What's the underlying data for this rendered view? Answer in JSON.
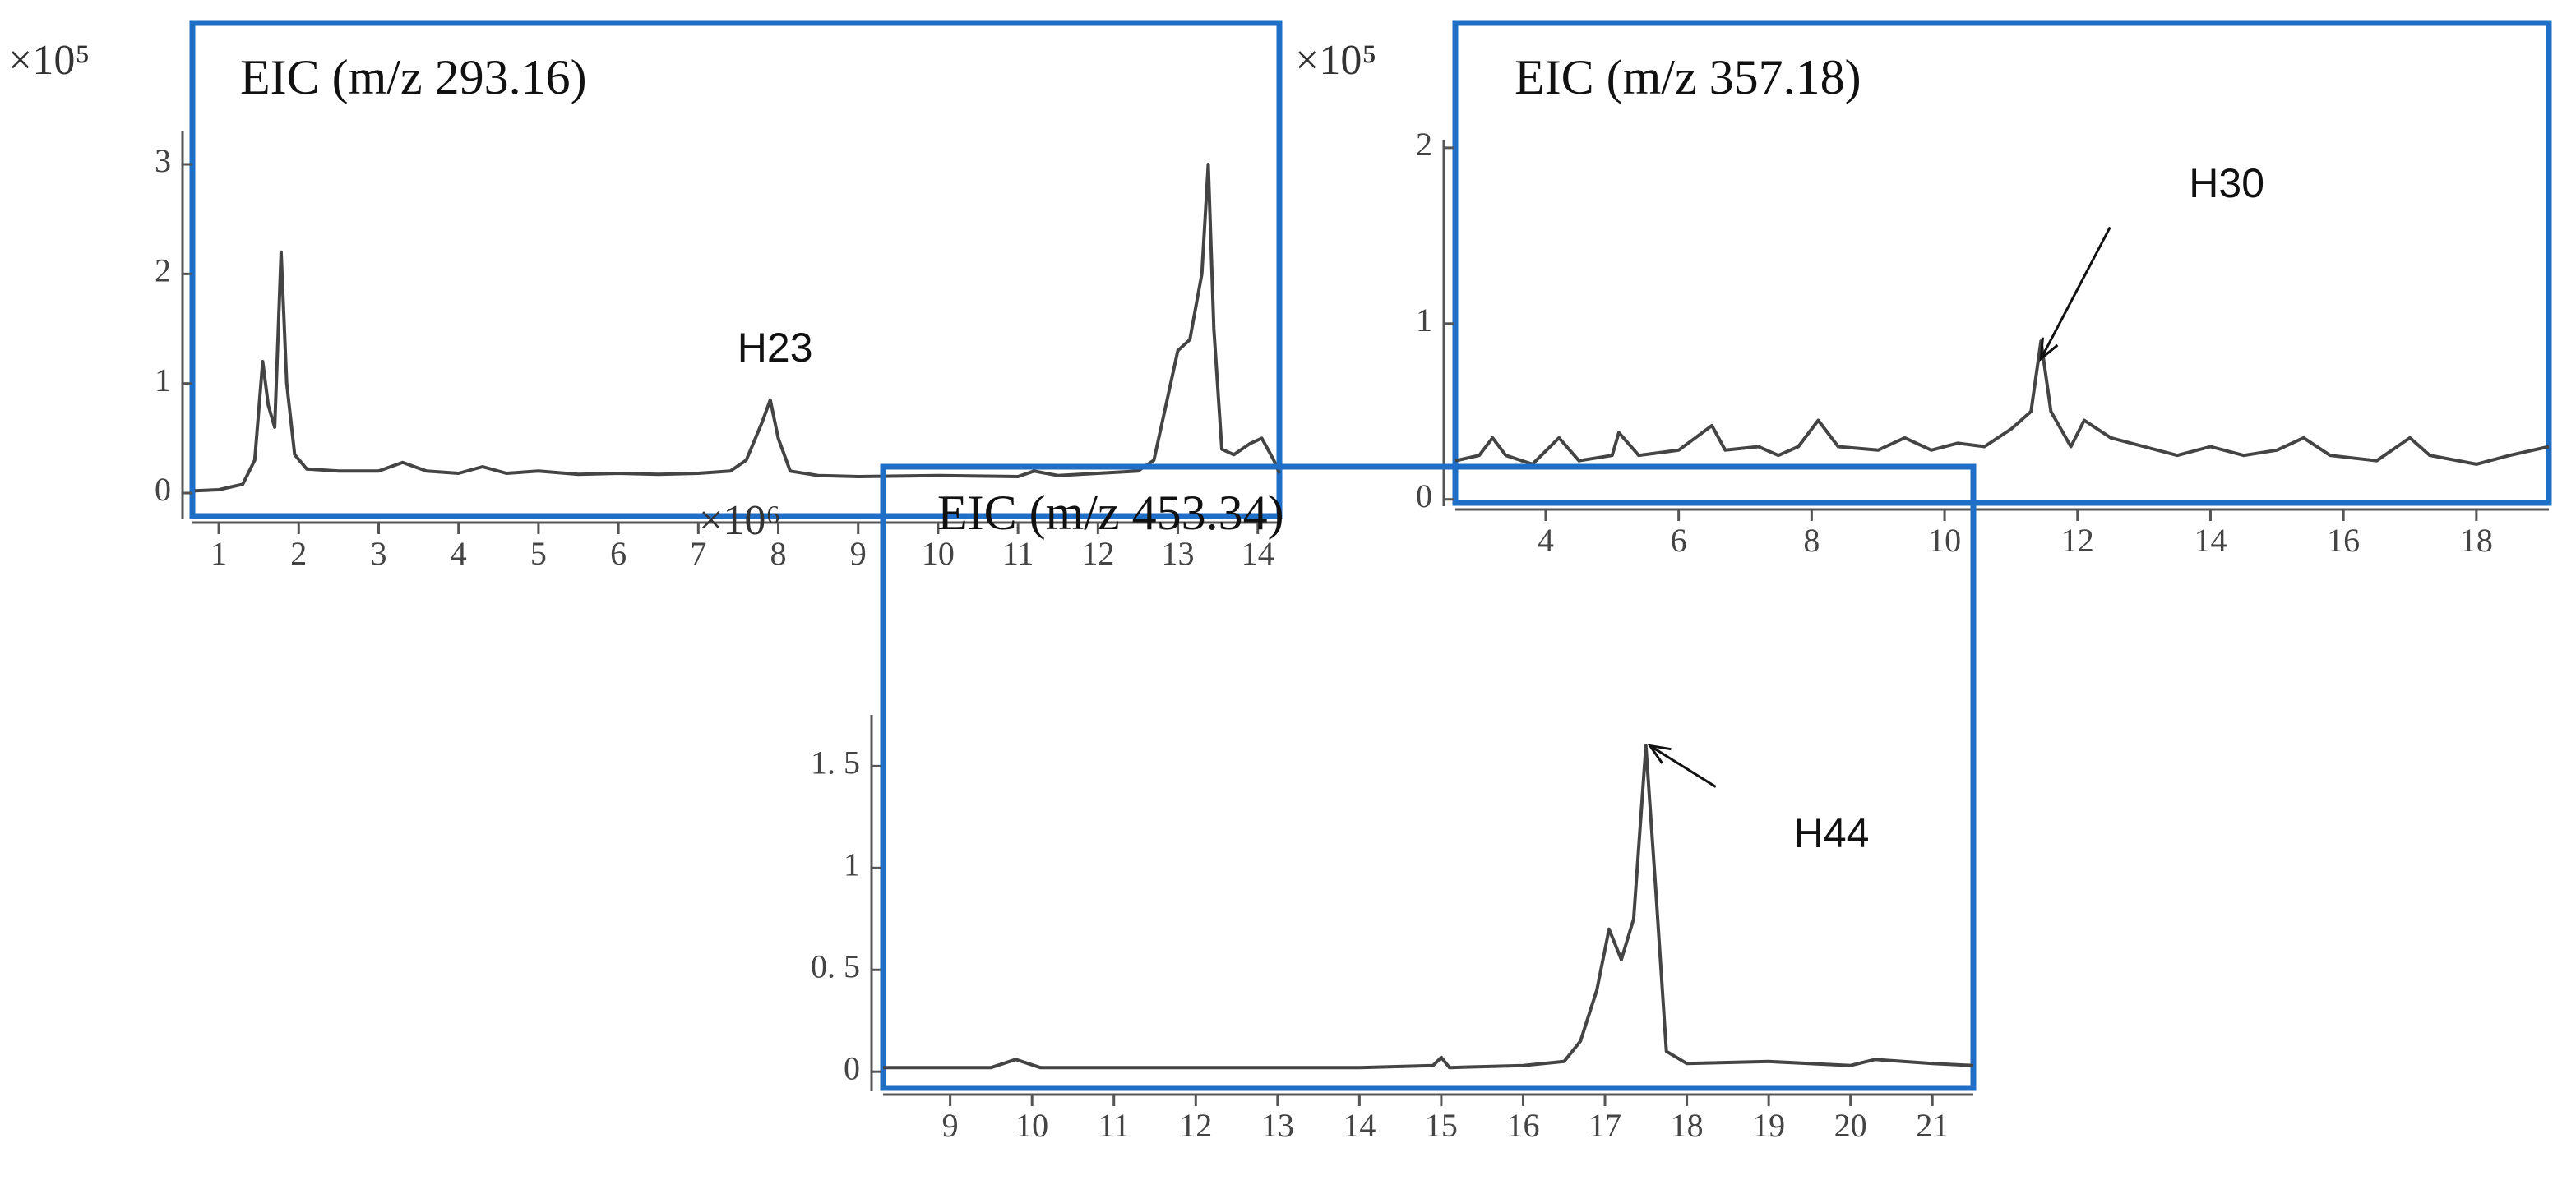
{
  "chart_data": [
    {
      "type": "line",
      "title": "EIC (m/z 293.16)",
      "scale_label": "×10⁵",
      "color": "#444444",
      "x": [
        0.7,
        1.0,
        1.3,
        1.45,
        1.55,
        1.62,
        1.7,
        1.78,
        1.85,
        1.95,
        2.1,
        2.5,
        3.0,
        3.3,
        3.6,
        4.0,
        4.3,
        4.6,
        5.0,
        5.5,
        6.0,
        6.5,
        7.0,
        7.4,
        7.6,
        7.8,
        7.9,
        8.0,
        8.15,
        8.5,
        9.0,
        10.0,
        11.0,
        11.2,
        11.5,
        12.0,
        12.5,
        12.7,
        12.85,
        13.0,
        13.15,
        13.3,
        13.38,
        13.45,
        13.55,
        13.7,
        13.9,
        14.05,
        14.2,
        14.27
      ],
      "values": [
        0.02,
        0.03,
        0.08,
        0.3,
        1.2,
        0.8,
        0.6,
        2.2,
        1.0,
        0.35,
        0.22,
        0.2,
        0.2,
        0.28,
        0.2,
        0.18,
        0.24,
        0.18,
        0.2,
        0.17,
        0.18,
        0.17,
        0.18,
        0.2,
        0.3,
        0.65,
        0.85,
        0.5,
        0.2,
        0.16,
        0.15,
        0.16,
        0.15,
        0.2,
        0.16,
        0.18,
        0.2,
        0.3,
        0.8,
        1.3,
        1.4,
        2.0,
        3.0,
        1.5,
        0.4,
        0.35,
        0.45,
        0.5,
        0.3,
        0.18
      ],
      "xlim": [
        0.67,
        14.27
      ],
      "ylim": [
        -0.21,
        4.29
      ],
      "xticks": [
        1,
        2,
        3,
        4,
        5,
        6,
        7,
        8,
        9,
        10,
        11,
        12,
        13,
        14
      ],
      "yticks": [
        0,
        1,
        2,
        3
      ],
      "annotations": [
        {
          "text": "H23",
          "x": 7.9,
          "y": 0.85,
          "arrow": false
        }
      ]
    },
    {
      "type": "line",
      "title": "EIC (m/z 357.18)",
      "scale_label": "×10⁵",
      "color": "#444444",
      "x": [
        2.64,
        3.0,
        3.2,
        3.4,
        3.8,
        4.2,
        4.5,
        5.0,
        5.1,
        5.4,
        6.0,
        6.5,
        6.7,
        7.2,
        7.5,
        7.8,
        8.1,
        8.4,
        9.0,
        9.4,
        9.8,
        10.2,
        10.6,
        11.0,
        11.3,
        11.45,
        11.6,
        11.9,
        12.1,
        12.5,
        13.0,
        13.5,
        14.0,
        14.5,
        15.0,
        15.4,
        15.8,
        16.5,
        17.0,
        17.3,
        18.0,
        18.5,
        19.09
      ],
      "values": [
        0.22,
        0.25,
        0.35,
        0.25,
        0.2,
        0.35,
        0.22,
        0.25,
        0.38,
        0.25,
        0.28,
        0.42,
        0.28,
        0.3,
        0.25,
        0.3,
        0.45,
        0.3,
        0.28,
        0.35,
        0.28,
        0.32,
        0.3,
        0.4,
        0.5,
        0.9,
        0.5,
        0.3,
        0.45,
        0.35,
        0.3,
        0.25,
        0.3,
        0.25,
        0.28,
        0.35,
        0.25,
        0.22,
        0.35,
        0.25,
        0.2,
        0.25,
        0.3
      ],
      "xlim": [
        2.64,
        19.09
      ],
      "ylim": [
        -0.02,
        2.71
      ],
      "xticks": [
        4,
        6,
        8,
        10,
        12,
        14,
        16,
        18
      ],
      "yticks": [
        0,
        1,
        2
      ],
      "annotations": [
        {
          "text": "H30",
          "x": 11.45,
          "y": 0.8,
          "arrow": true
        }
      ]
    },
    {
      "type": "line",
      "title": "EIC (m/z 453.34)",
      "scale_label": "×10⁶",
      "color": "#444444",
      "x": [
        8.18,
        9.5,
        9.8,
        10.1,
        12,
        14,
        14.9,
        15.0,
        15.1,
        16,
        16.5,
        16.7,
        16.9,
        17.05,
        17.2,
        17.35,
        17.5,
        17.62,
        17.75,
        18,
        19,
        20,
        20.3,
        21,
        21.5
      ],
      "values": [
        0.02,
        0.02,
        0.06,
        0.02,
        0.02,
        0.02,
        0.03,
        0.07,
        0.02,
        0.03,
        0.05,
        0.15,
        0.4,
        0.7,
        0.55,
        0.75,
        1.6,
        0.9,
        0.1,
        0.04,
        0.05,
        0.03,
        0.06,
        0.04,
        0.03
      ],
      "xlim": [
        8.18,
        21.5
      ],
      "ylim": [
        -0.08,
        2.97
      ],
      "xticks": [
        9,
        10,
        11,
        12,
        13,
        14,
        15,
        16,
        17,
        18,
        19,
        20,
        21
      ],
      "yticks": [
        0,
        {
          "value": 0.5,
          "label": "0. 5"
        },
        1,
        {
          "value": 1.5,
          "label": "1. 5"
        }
      ],
      "annotations": [
        {
          "text": "H44",
          "x": 17.55,
          "y": 1.6,
          "arrow": true
        }
      ]
    }
  ]
}
